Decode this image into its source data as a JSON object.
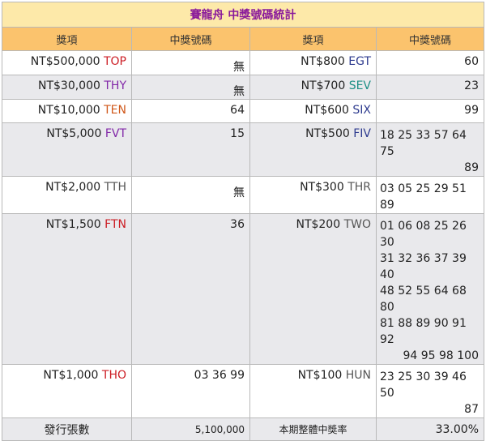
{
  "title": "賽龍舟 中獎號碼統計",
  "headers": [
    "獎項",
    "中獎號碼",
    "獎項",
    "中獎號碼"
  ],
  "rows": [
    {
      "left_prize": "NT$500,000",
      "left_code": "TOP",
      "left_value": "無",
      "right_prize": "NT$800",
      "right_code": "EGT",
      "right_value": "60"
    },
    {
      "left_prize": "NT$30,000",
      "left_code": "THY",
      "left_value": "無",
      "right_prize": "NT$700",
      "right_code": "SEV",
      "right_value": "23"
    },
    {
      "left_prize": "NT$10,000",
      "left_code": "TEN",
      "left_value": "64",
      "right_prize": "NT$600",
      "right_code": "SIX",
      "right_value": "99"
    },
    {
      "left_prize": "NT$5,000",
      "left_code": "FVT",
      "left_value": "15",
      "right_prize": "NT$500",
      "right_code": "FIV",
      "right_value_lines": [
        "18 25 33 57 64 75",
        "89"
      ]
    },
    {
      "left_prize": "NT$2,000",
      "left_code": "TTH",
      "left_value": "無",
      "right_prize": "NT$300",
      "right_code": "THR",
      "right_value_lines": [
        "03 05 25 29 51 89"
      ]
    },
    {
      "left_prize": "NT$1,500",
      "left_code": "FTN",
      "left_value": "36",
      "right_prize": "NT$200",
      "right_code": "TWO",
      "right_value_lines": [
        "01 06 08 25 26 30",
        "31 32 36 37 39 40",
        "48 52 55 64 68 80",
        "81 88 89 90 91 92",
        "94 95 98 100"
      ]
    },
    {
      "left_prize": "NT$1,000",
      "left_code": "THO",
      "left_value": "03 36 99",
      "right_prize": "NT$100",
      "right_code": "HUN",
      "right_value_lines": [
        "23 25 30 39 46 50",
        "87"
      ]
    }
  ],
  "summary": {
    "issued_label": "發行張數",
    "issued_value": "5,100,000",
    "rate_label": "本期整體中獎率",
    "rate_value": "33.00%"
  }
}
